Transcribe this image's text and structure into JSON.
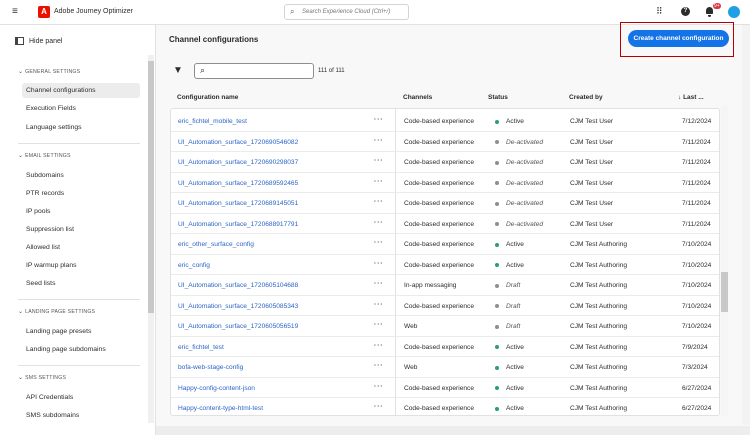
{
  "header": {
    "app_title": "Adobe Journey Optimizer",
    "search_placeholder": "Search Experience Cloud (Ctrl+/)",
    "notification_count": "9+",
    "icons": [
      "menu-icon",
      "adobe-logo",
      "search-icon",
      "apps-grid-icon",
      "help-icon",
      "bell-icon",
      "avatar"
    ]
  },
  "sidebar": {
    "hide_panel": "Hide panel",
    "sections": [
      {
        "title": "GENERAL SETTINGS",
        "items": [
          "Channel configurations",
          "Execution Fields",
          "Language settings"
        ]
      },
      {
        "title": "EMAIL SETTINGS",
        "items": [
          "Subdomains",
          "PTR records",
          "IP pools",
          "Suppression list",
          "Allowed list",
          "IP warmup plans",
          "Seed lists"
        ]
      },
      {
        "title": "LANDING PAGE SETTINGS",
        "items": [
          "Landing page presets",
          "Landing page subdomains"
        ]
      },
      {
        "title": "SMS SETTINGS",
        "items": [
          "API Credentials",
          "SMS subdomains"
        ]
      }
    ],
    "selected": "Channel configurations"
  },
  "main": {
    "title": "Channel configurations",
    "create_button": "Create channel configuration",
    "count": "111 of 111",
    "search_value": "",
    "columns": [
      "Configuration name",
      "Channels",
      "Status",
      "Created by",
      "Last ..."
    ],
    "status_colors": {
      "Active": "#2d9d78",
      "De-activated": "#8e8e8e",
      "Draft": "#8e8e8e"
    },
    "rows": [
      [
        "eric_fichtel_mobile_test",
        "Code-based experience",
        "Active",
        "CJM Test User",
        "7/12/2024"
      ],
      [
        "UI_Automation_surface_1720690546082",
        "Code-based experience",
        "De-activated",
        "CJM Test User",
        "7/11/2024"
      ],
      [
        "UI_Automation_surface_1720690298037",
        "Code-based experience",
        "De-activated",
        "CJM Test User",
        "7/11/2024"
      ],
      [
        "UI_Automation_surface_1720689592465",
        "Code-based experience",
        "De-activated",
        "CJM Test User",
        "7/11/2024"
      ],
      [
        "UI_Automation_surface_1720689145051",
        "Code-based experience",
        "De-activated",
        "CJM Test User",
        "7/11/2024"
      ],
      [
        "UI_Automation_surface_1720688917791",
        "Code-based experience",
        "De-activated",
        "CJM Test User",
        "7/11/2024"
      ],
      [
        "eric_other_surface_config",
        "Code-based experience",
        "Active",
        "CJM Test Authoring",
        "7/10/2024"
      ],
      [
        "eric_config",
        "Code-based experience",
        "Active",
        "CJM Test Authoring",
        "7/10/2024"
      ],
      [
        "UI_Automation_surface_1720605104688",
        "In-app messaging",
        "Draft",
        "CJM Test Authoring",
        "7/10/2024"
      ],
      [
        "UI_Automation_surface_1720605085343",
        "Code-based experience",
        "Draft",
        "CJM Test Authoring",
        "7/10/2024"
      ],
      [
        "UI_Automation_surface_1720605056519",
        "Web",
        "Draft",
        "CJM Test Authoring",
        "7/10/2024"
      ],
      [
        "eric_fichtel_test",
        "Code-based experience",
        "Active",
        "CJM Test Authoring",
        "7/9/2024"
      ],
      [
        "bofa-web-stage-config",
        "Web",
        "Active",
        "CJM Test Authoring",
        "7/3/2024"
      ],
      [
        "Happy-config-content-json",
        "Code-based experience",
        "Active",
        "CJM Test Authoring",
        "6/27/2024"
      ],
      [
        "Happy-content-type-html-test",
        "Code-based experience",
        "Active",
        "CJM Test Authoring",
        "6/27/2024"
      ]
    ]
  }
}
